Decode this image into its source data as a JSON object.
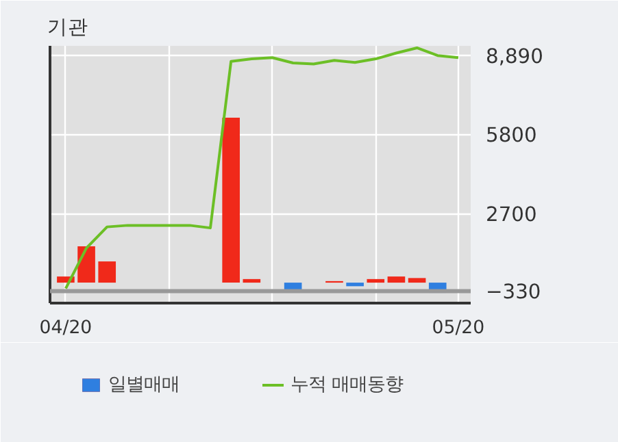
{
  "chart_data": {
    "type": "bar",
    "title": "기관",
    "categories": [
      "04/20",
      null,
      null,
      null,
      null,
      null,
      null,
      null,
      null,
      null,
      null,
      null,
      null,
      null,
      null,
      null,
      null,
      null,
      null,
      "05/20"
    ],
    "series": [
      {
        "name": "일별매매",
        "colors": [
          "#f0291a",
          "#f0291a",
          "#f0291a",
          "#f0291a",
          "#f0291a",
          "#f0291a",
          "#f0291a",
          "#f0291a",
          "#f0291a",
          "#f0291a",
          "#f0291a",
          "#2f7fe0",
          "#f0291a",
          "#f0291a",
          "#2f7fe0",
          "#f0291a",
          "#f0291a",
          "#f0291a",
          "#2f7fe0",
          "#f0291a"
        ],
        "values": [
          240,
          1420,
          830,
          0,
          0,
          0,
          0,
          0,
          6450,
          140,
          0,
          -360,
          0,
          60,
          -140,
          140,
          240,
          180,
          -400,
          0
        ]
      },
      {
        "name": "누적 매매동향",
        "type": "line",
        "color": "#6cbf26",
        "values": [
          -230,
          1350,
          2180,
          2240,
          2240,
          2240,
          2240,
          2140,
          8650,
          8750,
          8800,
          8590,
          8550,
          8690,
          8610,
          8750,
          8980,
          9180,
          8880,
          8800
        ]
      }
    ],
    "ylim": [
      -800,
      9260
    ],
    "yticks": [
      -330,
      2700,
      5800,
      {
        "value": 8890,
        "label": "8,890"
      }
    ],
    "ref_lines": [
      {
        "axis": "y",
        "value": -330,
        "color": "#999999"
      }
    ],
    "grid": true,
    "legend": "bottom",
    "marker": "none",
    "line_style": "solid"
  }
}
